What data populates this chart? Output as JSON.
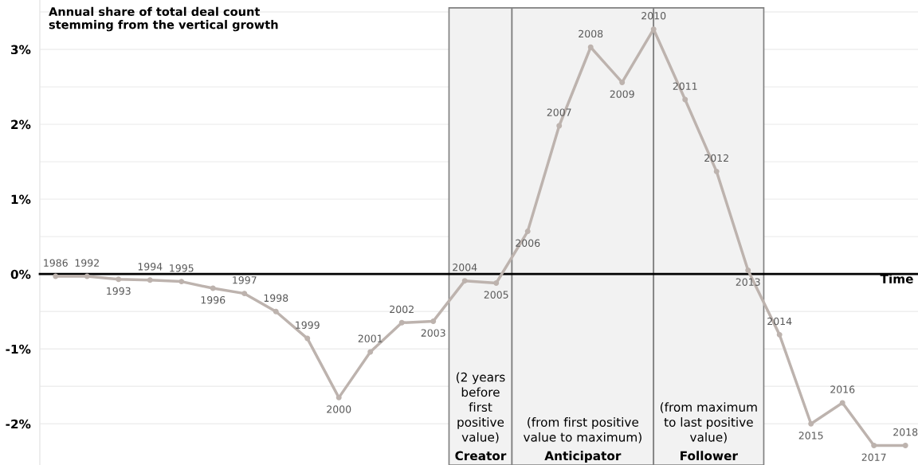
{
  "chart_data": {
    "type": "line",
    "title": "Annual share of total deal count\nstemming from the vertical growth",
    "xlabel": "Time",
    "categories": [
      "1986",
      "1992",
      "1993",
      "1994",
      "1995",
      "1996",
      "1997",
      "1998",
      "1999",
      "2000",
      "2001",
      "2002",
      "2003",
      "2004",
      "2005",
      "2006",
      "2007",
      "2008",
      "2009",
      "2010",
      "2011",
      "2012",
      "2013",
      "2014",
      "2015",
      "2016",
      "2017",
      "2018"
    ],
    "series": [
      {
        "color": "#bdb3ae",
        "values": [
          -0.03,
          -0.03,
          -0.07,
          -0.08,
          -0.1,
          -0.19,
          -0.26,
          -0.5,
          -0.86,
          -1.65,
          -1.04,
          -0.65,
          -0.63,
          -0.09,
          -0.12,
          0.57,
          1.98,
          3.03,
          2.56,
          3.27,
          2.33,
          1.37,
          0.05,
          -0.81,
          -2.0,
          -1.72,
          -2.29,
          -2.29
        ]
      }
    ],
    "ylim": [
      -2.55,
      3.66
    ],
    "yticks": [
      {
        "value": -2,
        "label": "-2%"
      },
      {
        "value": -1.5,
        "label": null
      },
      {
        "value": -1,
        "label": "-1%"
      },
      {
        "value": -0.5,
        "label": null
      },
      {
        "value": 0,
        "label": "0%"
      },
      {
        "value": 0.5,
        "label": null
      },
      {
        "value": 1,
        "label": "1%"
      },
      {
        "value": 1.5,
        "label": null
      },
      {
        "value": 2,
        "label": "2%"
      },
      {
        "value": 2.5,
        "label": null
      },
      {
        "value": 3,
        "label": "3%"
      },
      {
        "value": 3.5,
        "label": null
      }
    ],
    "grid": "y",
    "marker": "circle",
    "line_style": "solid",
    "bands": [
      {
        "axis": "x",
        "from": "2004",
        "to": "2005",
        "label": "(2 years\nbefore\nfirst\npositive\nvalue)\nCreator",
        "color": "#f2f2f2"
      },
      {
        "axis": "x",
        "from": "2006",
        "to": "2010",
        "label": "(from first positive\nvalue to maximum)\nAnticipator",
        "color": "#f2f2f2"
      },
      {
        "axis": "x",
        "from": "2010",
        "to": "2013",
        "label": "(from maximum\nto last positive\nvalue)\nFollower",
        "color": "#f2f2f2"
      }
    ]
  }
}
